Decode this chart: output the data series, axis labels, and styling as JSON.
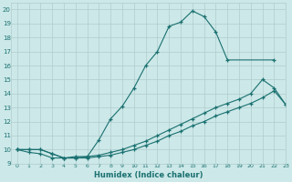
{
  "xlabel": "Humidex (Indice chaleur)",
  "bg_color": "#cce8e8",
  "grid_color": "#b0cccc",
  "line_color": "#1a7070",
  "xlim": [
    -0.5,
    23
  ],
  "ylim": [
    9,
    20.5
  ],
  "xticks": [
    0,
    1,
    2,
    3,
    4,
    5,
    6,
    7,
    8,
    9,
    10,
    11,
    12,
    13,
    14,
    15,
    16,
    17,
    18,
    19,
    20,
    21,
    22,
    23
  ],
  "yticks": [
    9,
    10,
    11,
    12,
    13,
    14,
    15,
    16,
    17,
    18,
    19,
    20
  ],
  "line1_x": [
    0,
    1,
    2,
    3,
    4,
    5,
    6,
    7,
    8,
    9,
    10,
    11,
    12,
    13,
    14,
    15,
    16,
    17,
    18,
    22
  ],
  "line1_y": [
    10,
    9.8,
    9.7,
    9.4,
    9.4,
    9.5,
    9.5,
    10.7,
    12.2,
    13.1,
    14.4,
    16.0,
    17.0,
    18.8,
    19.1,
    19.9,
    19.5,
    18.4,
    16.4,
    16.4
  ],
  "line2_x": [
    0,
    1,
    2,
    3,
    4,
    5,
    6,
    7,
    8,
    9,
    10,
    11,
    12,
    13,
    14,
    15,
    16,
    17,
    18,
    19,
    20,
    21,
    22,
    23
  ],
  "line2_y": [
    10,
    10,
    10,
    9.7,
    9.4,
    9.4,
    9.5,
    9.6,
    9.8,
    10.0,
    10.3,
    10.6,
    11.0,
    11.4,
    11.8,
    12.2,
    12.6,
    13.0,
    13.3,
    13.6,
    14.0,
    15.0,
    14.4,
    13.2
  ],
  "line3_x": [
    0,
    1,
    2,
    3,
    4,
    5,
    6,
    7,
    8,
    9,
    10,
    11,
    12,
    13,
    14,
    15,
    16,
    17,
    18,
    19,
    20,
    21,
    22,
    23
  ],
  "line3_y": [
    10,
    10,
    10,
    9.7,
    9.4,
    9.4,
    9.4,
    9.5,
    9.6,
    9.8,
    10.0,
    10.3,
    10.6,
    11.0,
    11.3,
    11.7,
    12.0,
    12.4,
    12.7,
    13.0,
    13.3,
    13.7,
    14.2,
    13.2
  ]
}
